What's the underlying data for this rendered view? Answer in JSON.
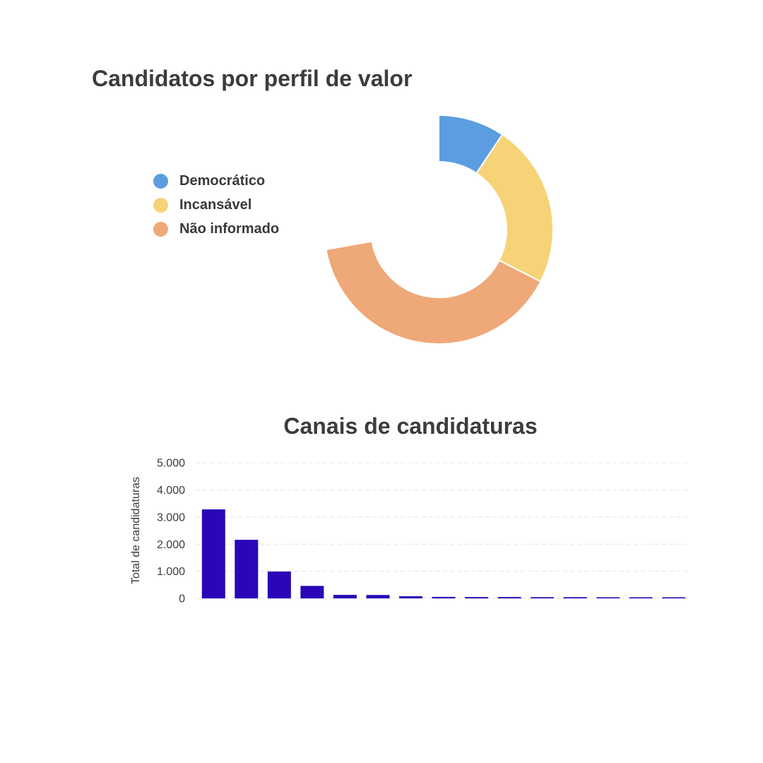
{
  "chart_data": [
    {
      "type": "pie",
      "title": "Candidatos por perfil de valor",
      "labels": [
        "Democrático",
        "Incansável",
        "Não informado"
      ],
      "values": [
        13,
        32,
        55
      ],
      "colors": [
        "#5b9ddf",
        "#f7d377",
        "#efa878"
      ],
      "legend": "left"
    },
    {
      "type": "bar",
      "title": "Canais de candidaturas",
      "xlabel": "",
      "ylabel": "Total de candidaturas",
      "values": [
        3280,
        2160,
        990,
        460,
        130,
        125,
        80,
        55,
        50,
        50,
        45,
        45,
        40,
        40,
        40
      ],
      "ylim": [
        0,
        5000
      ],
      "yticks": [
        0,
        1000,
        2000,
        3000,
        4000,
        5000
      ],
      "ytick_labels": [
        "0",
        "1.000",
        "2.000",
        "3.000",
        "4.000",
        "5.000"
      ],
      "color": "#2a06b8",
      "grid": true
    }
  ]
}
